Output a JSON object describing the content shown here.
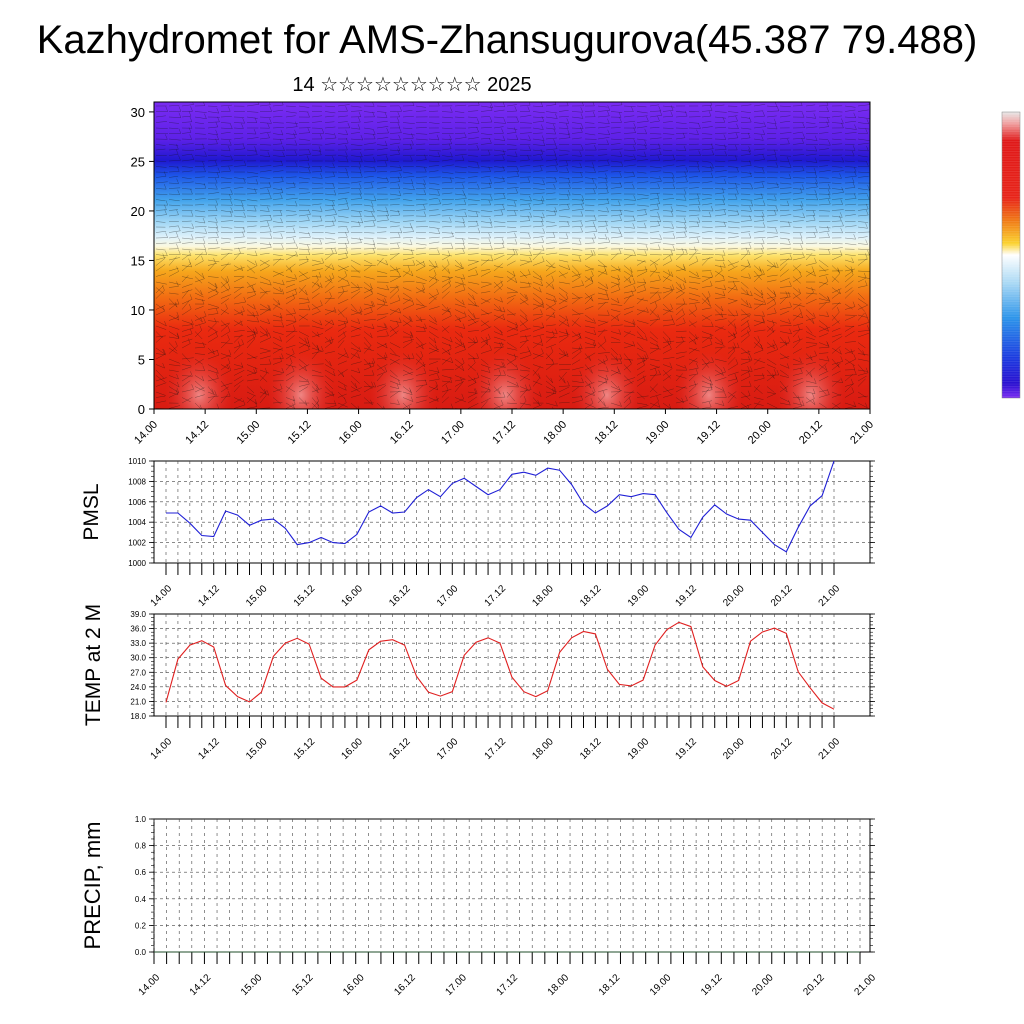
{
  "header": {
    "title": "Kazhydromet for AMS-Zhansugurova(45.387 79.488)",
    "subtitle": "14 ☆☆☆☆☆☆☆☆☆ 2025"
  },
  "colors": {
    "pmsl_line": "#1f1fd6",
    "temp_line": "#e01f1f",
    "precip_line": "#1f4d2a",
    "grid": "#444444"
  },
  "chart_data": [
    {
      "type": "heatmap",
      "title": "",
      "xlabel": "",
      "ylabel": "",
      "x_tick_labels": [
        "14.00",
        "14.12",
        "15.00",
        "15.12",
        "16.00",
        "16.12",
        "17.00",
        "17.12",
        "18.00",
        "18.12",
        "19.00",
        "19.12",
        "20.00",
        "20.12",
        "21.00"
      ],
      "y_ticks": [
        0,
        5,
        10,
        15,
        20,
        25,
        30
      ],
      "ylim": [
        0,
        31
      ],
      "color_bands_bottom_to_top": [
        "red",
        "orange",
        "yellow",
        "light-blue",
        "blue",
        "purple"
      ],
      "overlay": "wind barbs"
    },
    {
      "type": "line",
      "ylabel": "PMSL",
      "ylim": [
        1000,
        1010
      ],
      "y_ticks": [
        "1000",
        "1002",
        "1004",
        "1006",
        "1008",
        "1010"
      ],
      "x_tick_labels": [
        "14.00",
        "14.12",
        "15.00",
        "15.12",
        "16.00",
        "16.12",
        "17.00",
        "17.12",
        "18.00",
        "18.12",
        "19.00",
        "19.12",
        "20.00",
        "20.12",
        "21.00"
      ],
      "grid": true,
      "series": [
        {
          "values": [
            1004.9,
            1004.9,
            1003.9,
            1002.7,
            1002.6,
            1005.1,
            1004.7,
            1003.7,
            1004.2,
            1004.3,
            1003.4,
            1001.8,
            1002.0,
            1002.5,
            1002.0,
            1001.9,
            1002.8,
            1005.0,
            1005.6,
            1004.9,
            1005.0,
            1006.4,
            1007.2,
            1006.5,
            1007.8,
            1008.3,
            1007.5,
            1006.7,
            1007.2,
            1008.7,
            1008.9,
            1008.6,
            1009.3,
            1009.1,
            1007.7,
            1005.8,
            1004.9,
            1005.6,
            1006.7,
            1006.5,
            1006.8,
            1006.7,
            1004.9,
            1003.3,
            1002.5,
            1004.5,
            1005.7,
            1004.8,
            1004.3,
            1004.2,
            1003.0,
            1001.8,
            1001.1,
            1003.5,
            1005.6,
            1006.6,
            1010.0
          ]
        }
      ]
    },
    {
      "type": "line",
      "ylabel": "TEMP at 2 M",
      "ylim": [
        18,
        39
      ],
      "y_ticks": [
        "18.0",
        "21.0",
        "24.0",
        "27.0",
        "30.0",
        "33.0",
        "36.0",
        "39.0"
      ],
      "x_tick_labels": [
        "14.00",
        "14.12",
        "15.00",
        "15.12",
        "16.00",
        "16.12",
        "17.00",
        "17.12",
        "18.00",
        "18.12",
        "19.00",
        "19.12",
        "20.00",
        "20.12",
        "21.00"
      ],
      "grid": true,
      "series": [
        {
          "values": [
            20.8,
            29.7,
            32.6,
            33.5,
            32.2,
            24.3,
            22.0,
            20.9,
            22.9,
            30.3,
            33.0,
            34.0,
            32.8,
            25.8,
            24.0,
            24.0,
            25.4,
            31.6,
            33.4,
            33.7,
            32.6,
            26.2,
            22.9,
            22.1,
            23.0,
            30.5,
            33.2,
            34.1,
            33.0,
            26.0,
            23.0,
            22.0,
            23.2,
            31.1,
            34.1,
            35.4,
            34.9,
            27.6,
            24.5,
            24.2,
            25.4,
            32.6,
            35.8,
            37.3,
            36.4,
            28.1,
            25.3,
            24.1,
            25.3,
            33.4,
            35.3,
            36.1,
            35.0,
            27.1,
            23.8,
            20.7,
            19.4
          ]
        }
      ]
    },
    {
      "type": "line",
      "ylabel": "PRECIP, mm",
      "ylim": [
        0,
        1
      ],
      "y_ticks": [
        "0.0",
        "0.2",
        "0.4",
        "0.6",
        "0.8",
        "1.0"
      ],
      "x_tick_labels": [
        "14.00",
        "14.12",
        "15.00",
        "15.12",
        "16.00",
        "16.12",
        "17.00",
        "17.12",
        "18.00",
        "18.12",
        "19.00",
        "19.12",
        "20.00",
        "20.12",
        "21.00"
      ],
      "grid": true,
      "series": [
        {
          "values": [
            0,
            0,
            0,
            0,
            0,
            0,
            0,
            0,
            0,
            0,
            0,
            0,
            0,
            0,
            0,
            0,
            0,
            0,
            0,
            0,
            0,
            0,
            0,
            0,
            0,
            0,
            0,
            0,
            0,
            0,
            0,
            0,
            0,
            0,
            0,
            0,
            0,
            0,
            0,
            0,
            0,
            0,
            0,
            0,
            0,
            0,
            0,
            0,
            0,
            0,
            0,
            0,
            0,
            0,
            0,
            0,
            0
          ]
        }
      ]
    }
  ]
}
